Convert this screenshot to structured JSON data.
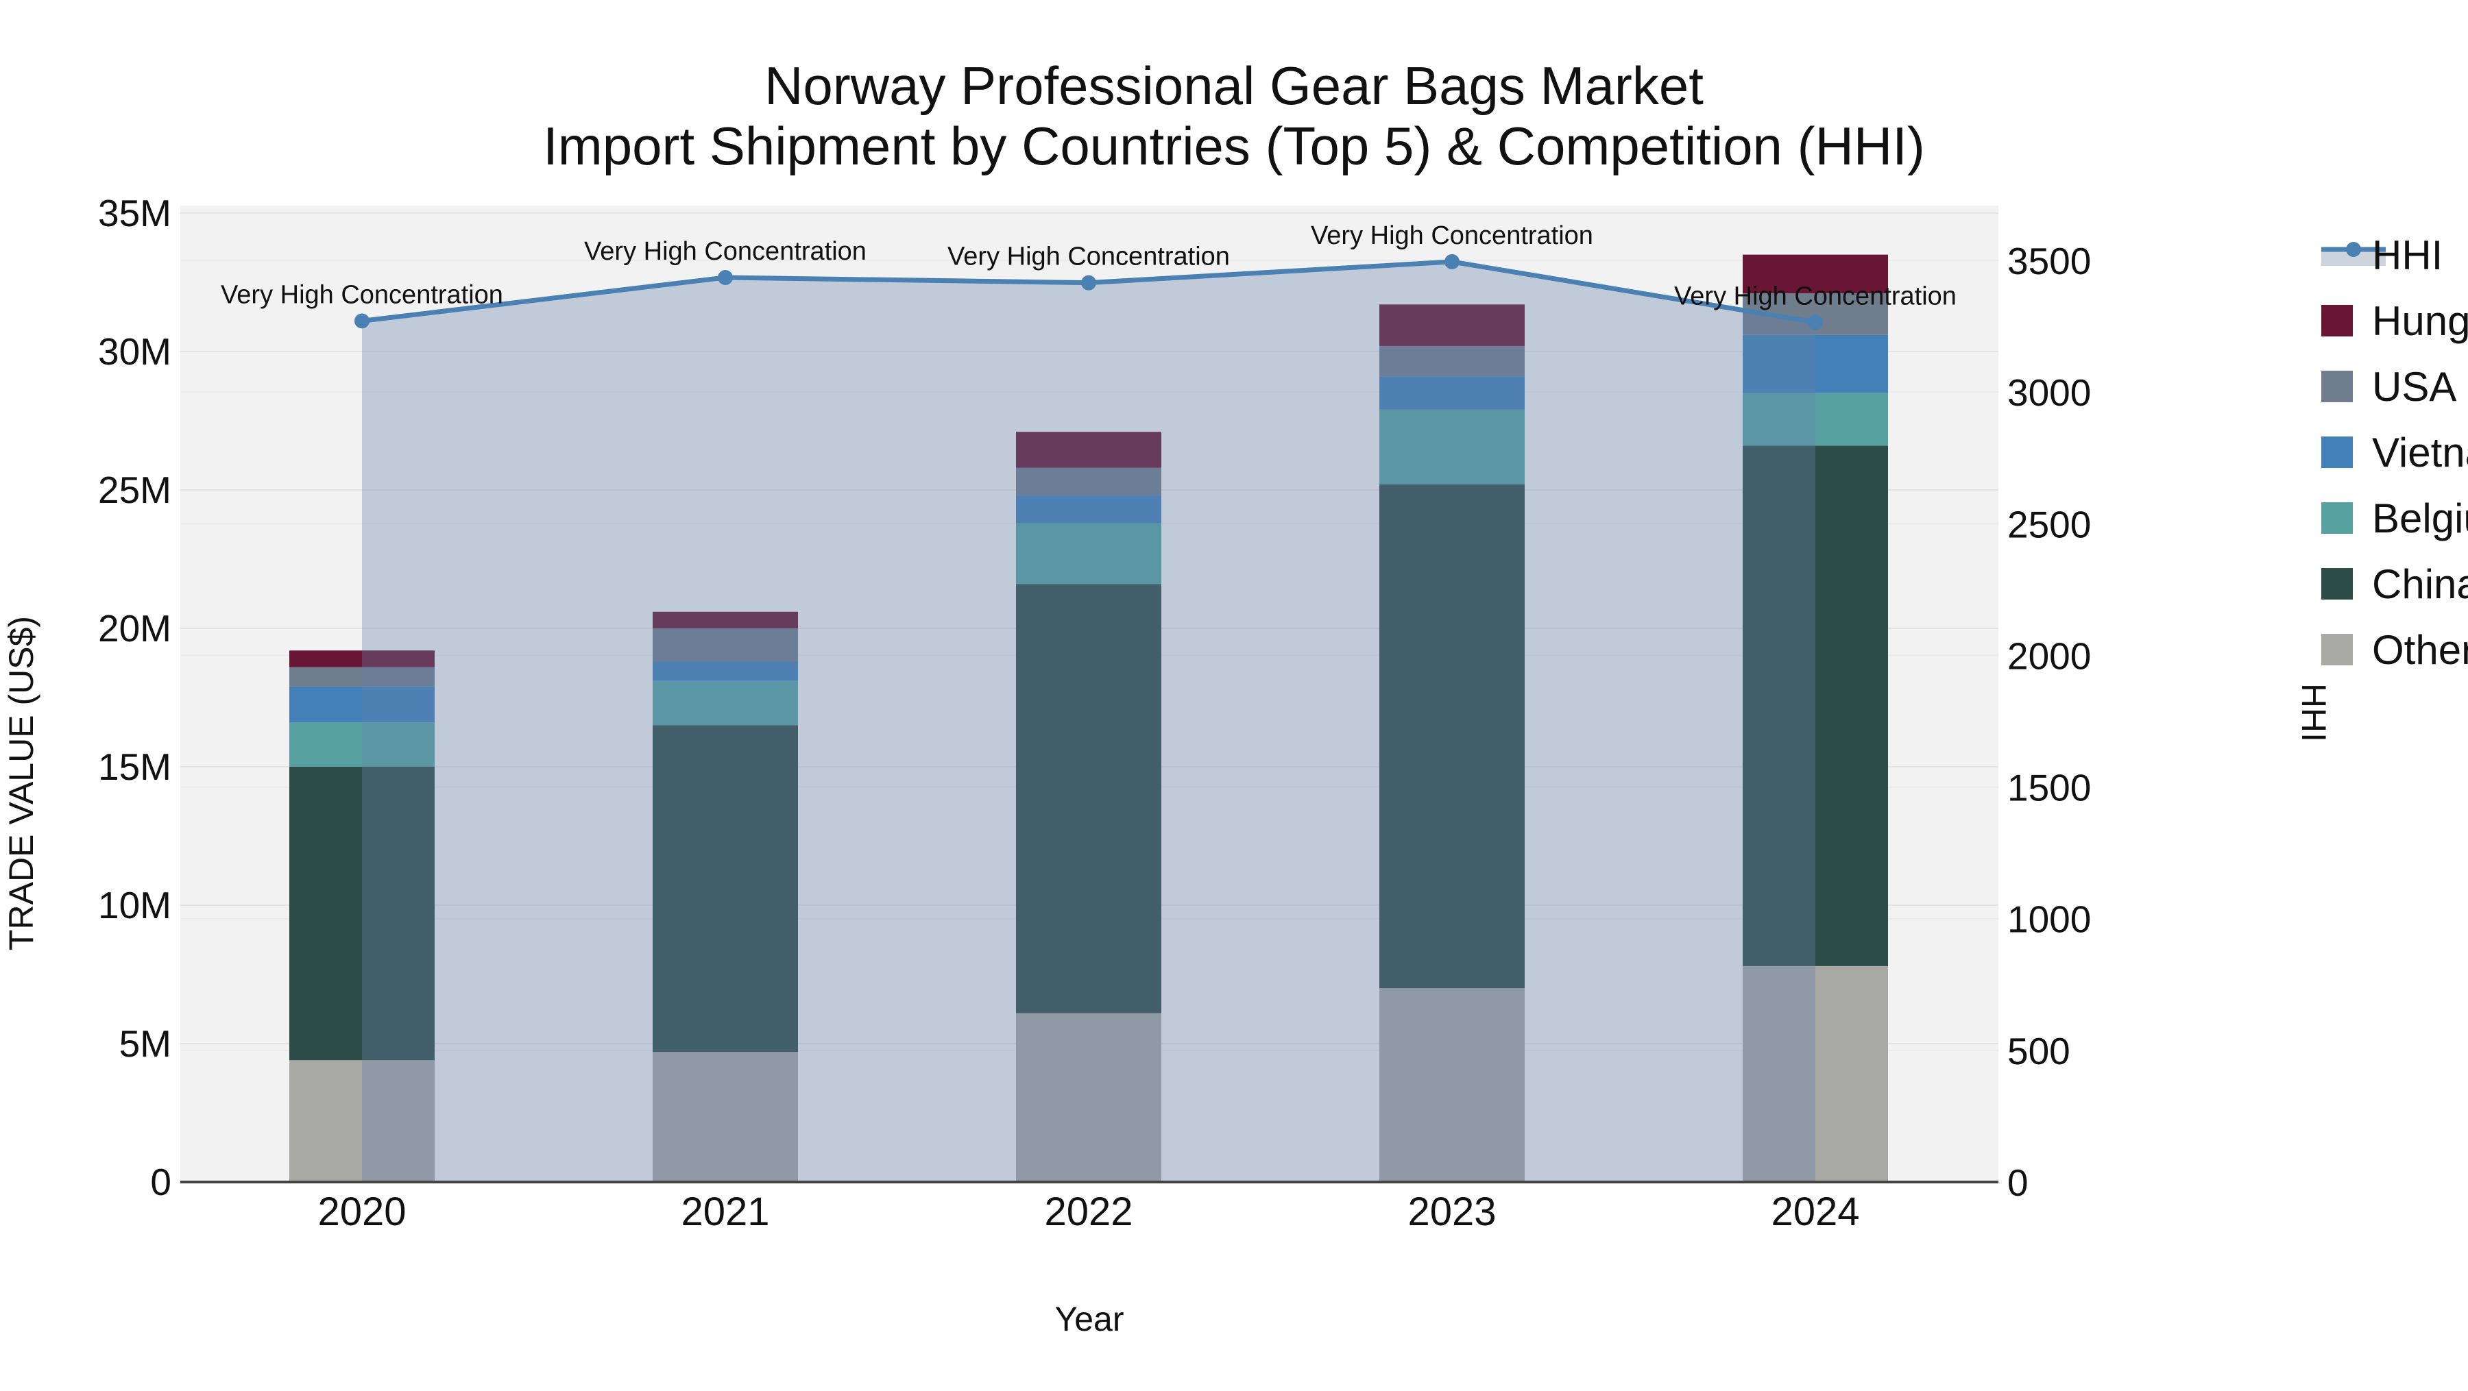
{
  "title": {
    "line1": "Norway Professional Gear Bags Market",
    "line2": "Import Shipment by Countries (Top 5) & Competition (HHI)"
  },
  "axes": {
    "x_label": "Year",
    "y_left_label": "TRADE VALUE (US$)",
    "y_right_label": "HHI",
    "x_ticks": [
      "2020",
      "2021",
      "2022",
      "2023",
      "2024"
    ],
    "y_left_ticks": [
      "0",
      "5M",
      "10M",
      "15M",
      "20M",
      "25M",
      "30M",
      "35M"
    ],
    "y_right_ticks": [
      "0",
      "500",
      "1000",
      "1500",
      "2000",
      "2500",
      "3000",
      "3500"
    ]
  },
  "legend": {
    "items": [
      {
        "label": "HHI",
        "type": "line",
        "color": "#4a80b2"
      },
      {
        "label": "Hungary",
        "type": "swatch",
        "color": "#681634"
      },
      {
        "label": "USA",
        "type": "swatch",
        "color": "#6f7d8d"
      },
      {
        "label": "Vietnam",
        "type": "swatch",
        "color": "#4480b8"
      },
      {
        "label": "Belgium",
        "type": "swatch",
        "color": "#57a1a1"
      },
      {
        "label": "China",
        "type": "swatch",
        "color": "#2e4c48"
      },
      {
        "label": "Others",
        "type": "swatch",
        "color": "#a8a8a5"
      }
    ]
  },
  "chart_data": [
    {
      "type": "bar",
      "stacked": true,
      "categories": [
        "2020",
        "2021",
        "2022",
        "2023",
        "2024"
      ],
      "unit": "M US$",
      "xlabel": "Year",
      "ylabel": "TRADE VALUE (US$)",
      "ylim": [
        0,
        35
      ],
      "grid": true,
      "series": [
        {
          "name": "Others",
          "color": "#a8a8a5",
          "values": [
            4.4,
            4.7,
            6.1,
            7.0,
            7.8
          ]
        },
        {
          "name": "China",
          "color": "#2e4c48",
          "values": [
            10.6,
            11.8,
            15.5,
            18.2,
            18.8
          ]
        },
        {
          "name": "Belgium",
          "color": "#57a1a1",
          "values": [
            1.6,
            1.6,
            2.2,
            2.7,
            1.9
          ]
        },
        {
          "name": "Vietnam",
          "color": "#4480b8",
          "values": [
            1.3,
            0.7,
            1.0,
            1.2,
            2.1
          ]
        },
        {
          "name": "USA",
          "color": "#6f7d8d",
          "values": [
            0.7,
            1.2,
            1.0,
            1.1,
            1.5
          ]
        },
        {
          "name": "Hungary",
          "color": "#681634",
          "values": [
            0.6,
            0.6,
            1.3,
            1.5,
            1.4
          ]
        }
      ],
      "totals": [
        19.2,
        20.6,
        27.1,
        31.7,
        33.5
      ]
    },
    {
      "type": "line",
      "name": "HHI",
      "axis": "right",
      "color": "#4a80b2",
      "area_fill": "rgba(100,130,170,0.35)",
      "x": [
        "2020",
        "2021",
        "2022",
        "2023",
        "2024"
      ],
      "values": [
        3270,
        3435,
        3415,
        3495,
        3265
      ],
      "ylabel": "HHI",
      "ylim": [
        0,
        3500
      ],
      "point_annotations": [
        "Very High Concentration",
        "Very High Concentration",
        "Very High Concentration",
        "Very High Concentration",
        "Very High Concentration"
      ]
    }
  ],
  "colors": {
    "plot_background": "#f2f2f2",
    "page_background": "#ffffff",
    "grid_left": "#e4e4e4",
    "grid_right": "#ebebeb",
    "axis_line": "#444444",
    "hhi_line": "#4a80b2",
    "hhi_legend_band": "#cdd4dd",
    "text": "#111111"
  }
}
